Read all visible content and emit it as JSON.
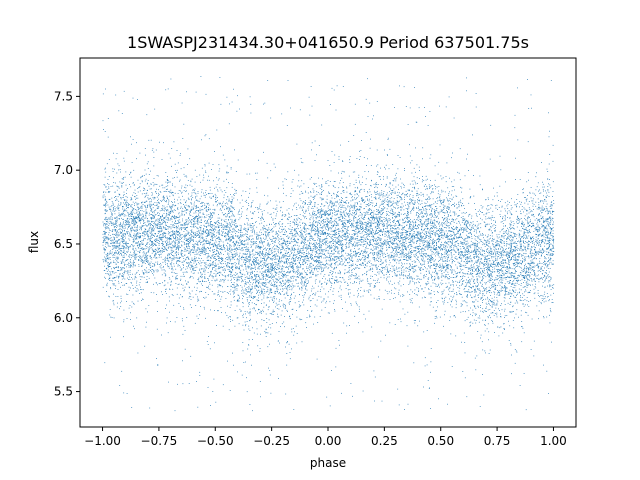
{
  "chart_data": {
    "type": "scatter",
    "title": "1SWASPJ231434.30+041650.9 Period 637501.75s",
    "xlabel": "phase",
    "ylabel": "flux",
    "xlim": [
      -1.1,
      1.1
    ],
    "ylim": [
      5.26,
      7.76
    ],
    "x_ticks": [
      -1.0,
      -0.75,
      -0.5,
      -0.25,
      0.0,
      0.25,
      0.5,
      0.75,
      1.0
    ],
    "x_tick_labels": [
      "−1.00",
      "−0.75",
      "−0.50",
      "−0.25",
      "0.00",
      "0.25",
      "0.50",
      "0.75",
      "1.00"
    ],
    "y_ticks": [
      5.5,
      6.0,
      6.5,
      7.0,
      7.5
    ],
    "y_tick_labels": [
      "5.5",
      "6.0",
      "6.5",
      "7.0",
      "7.5"
    ],
    "grid": false,
    "marker_color": "#1f77b4",
    "series": [
      {
        "name": "",
        "phase_range": [
          -1.0,
          1.0
        ],
        "baseline_flux_by_phase": [
          [
            -1.0,
            6.55
          ],
          [
            -0.8,
            6.58
          ],
          [
            -0.6,
            6.55
          ],
          [
            -0.45,
            6.5
          ],
          [
            -0.35,
            6.38
          ],
          [
            -0.25,
            6.36
          ],
          [
            -0.15,
            6.42
          ],
          [
            0.0,
            6.55
          ],
          [
            0.2,
            6.58
          ],
          [
            0.4,
            6.55
          ],
          [
            0.55,
            6.5
          ],
          [
            0.65,
            6.38
          ],
          [
            0.75,
            6.36
          ],
          [
            0.85,
            6.42
          ],
          [
            1.0,
            6.55
          ]
        ],
        "scatter_sigma": 0.2,
        "flux_range": [
          5.37,
          7.64
        ],
        "point_count": 14000
      }
    ]
  }
}
